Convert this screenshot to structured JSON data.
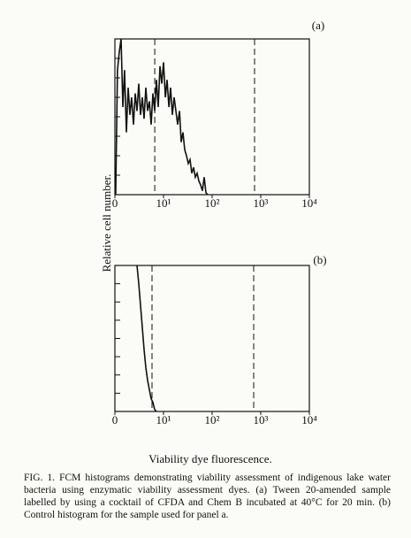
{
  "chart_data": [
    {
      "type": "line",
      "title": "(a)",
      "ylabel": "Relative cell number.",
      "xscale": "log",
      "xlim": [
        1,
        10000
      ],
      "xticks": [
        {
          "value": 1,
          "label": "0"
        },
        {
          "value": 10,
          "label": "10¹"
        },
        {
          "value": 100,
          "label": "10²"
        },
        {
          "value": 1000,
          "label": "10³"
        },
        {
          "value": 10000,
          "label": "10⁴"
        }
      ],
      "ylim": [
        0,
        8
      ],
      "yticks": [
        0,
        1,
        2,
        3,
        4,
        5,
        6,
        7,
        8
      ],
      "gates": [
        6.6,
        746
      ],
      "series": [
        {
          "color": "#111111",
          "x": [
            1.04,
            1.13,
            1.23,
            1.34,
            1.46,
            1.58,
            1.72,
            1.87,
            2.04,
            2.21,
            2.41,
            2.62,
            2.85,
            3.1,
            3.37,
            3.66,
            3.98,
            4.33,
            4.71,
            5.12,
            5.56,
            6.05,
            6.58,
            7.16,
            7.78,
            8.46,
            9.2,
            10,
            10.9,
            11.8,
            12.9,
            14.0,
            15.2,
            16.5,
            18.0,
            19.5,
            21.3,
            23.1,
            25.1,
            27.3,
            29.7,
            32.3,
            35.1,
            38.2,
            41.5,
            45.1,
            49.1,
            53.4,
            58.1,
            63.1,
            68.6,
            74.6,
            81.1
          ],
          "values": [
            0,
            6.4,
            7.3,
            8,
            4.5,
            6.4,
            3.2,
            5.5,
            4.1,
            5,
            3.6,
            5.2,
            4.3,
            5.7,
            4.1,
            5,
            3.9,
            5.5,
            4.3,
            4.8,
            3.6,
            5.2,
            4.3,
            5.9,
            4.5,
            6.6,
            5.7,
            6.8,
            5,
            5.9,
            4.5,
            5.5,
            4.1,
            5,
            4.3,
            3.6,
            4.3,
            2.7,
            3.2,
            2.3,
            2,
            1.6,
            1.8,
            1.1,
            1.4,
            0.9,
            1.1,
            0.7,
            0.5,
            0.2,
            0.9,
            0.1,
            0
          ]
        }
      ]
    },
    {
      "type": "line",
      "title": "(b)",
      "xlabel": "Viability dye fluorescence.",
      "xscale": "log",
      "xlim": [
        1,
        10000
      ],
      "xticks": [
        {
          "value": 1,
          "label": "0"
        },
        {
          "value": 10,
          "label": "10¹"
        },
        {
          "value": 100,
          "label": "10²"
        },
        {
          "value": 1000,
          "label": "10³"
        },
        {
          "value": 10000,
          "label": "10⁴"
        }
      ],
      "ylim": [
        0,
        8
      ],
      "yticks": [
        0,
        1,
        2,
        3,
        4,
        5,
        6,
        7,
        8
      ],
      "gates": [
        5.8,
        716
      ],
      "series": [
        {
          "color": "#111111",
          "x": [
            2.85,
            3.1,
            3.37,
            3.66,
            3.98,
            4.33,
            4.71,
            5.12,
            5.56,
            6.05,
            6.58,
            7.16
          ],
          "values": [
            8,
            7.0,
            5.8,
            4.6,
            3.4,
            2.4,
            1.7,
            1.2,
            0.7,
            0.5,
            0.1,
            0
          ]
        }
      ]
    }
  ],
  "caption": "FIG. 1. FCM histograms demonstrating viability assessment of indigenous lake water bacteria using enzymatic viability assessment dyes. (a) Tween 20-amended sample labelled by using a cocktail of CFDA and Chem B incubated at 40°C for 20 min. (b) Control histogram for the sample used for panel a."
}
